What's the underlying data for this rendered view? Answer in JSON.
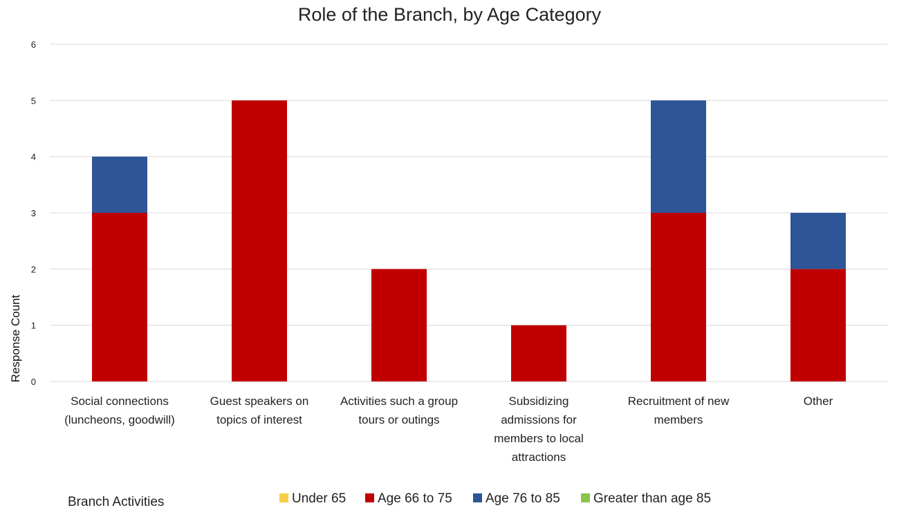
{
  "chart_data": {
    "type": "bar",
    "stacked": true,
    "title": "Role of the Branch, by Age Category",
    "xlabel": "Branch Activities",
    "ylabel": "Response Count",
    "ylim": [
      0,
      6
    ],
    "yticks": [
      0,
      1,
      2,
      3,
      4,
      5,
      6
    ],
    "grid": true,
    "legend_position": "bottom",
    "categories": [
      [
        "Social connections",
        "(luncheons, goodwill)"
      ],
      [
        "Guest speakers on",
        "topics of interest"
      ],
      [
        "Activities such a group",
        "tours or outings"
      ],
      [
        "Subsidizing",
        "admissions for",
        "members to local",
        "attractions"
      ],
      [
        "Recruitment of new",
        "members"
      ],
      [
        "Other"
      ]
    ],
    "series": [
      {
        "name": "Under 65",
        "color": "#f5cf47",
        "values": [
          0,
          0,
          0,
          0,
          0,
          0
        ]
      },
      {
        "name": "Age 66 to 75",
        "color": "#c00000",
        "values": [
          3,
          5,
          2,
          1,
          3,
          2
        ]
      },
      {
        "name": "Age 76 to 85",
        "color": "#2e5597",
        "values": [
          1,
          0,
          0,
          0,
          2,
          1
        ]
      },
      {
        "name": "Greater than age 85",
        "color": "#8bc34a",
        "values": [
          0,
          0,
          0,
          0,
          0,
          0
        ]
      }
    ]
  }
}
